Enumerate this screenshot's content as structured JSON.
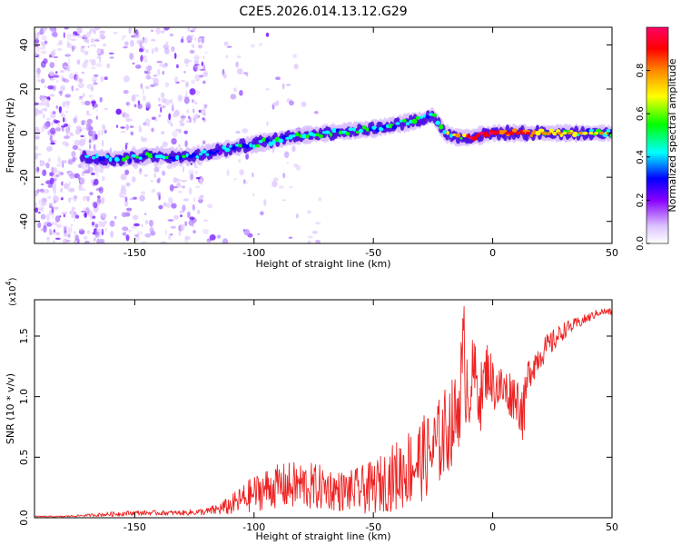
{
  "figure": {
    "title": "C2E5.2026.014.13.12.G29"
  },
  "chart_data": [
    {
      "type": "heatmap",
      "name": "spectrogram",
      "xlabel": "Height of straight line (km)",
      "ylabel": "Frequency (Hz)",
      "xlim": [
        -192,
        50
      ],
      "ylim": [
        -50,
        48
      ],
      "x_ticks": [
        -150,
        -100,
        -50,
        0,
        50
      ],
      "y_ticks": [
        -40,
        -20,
        0,
        20,
        40
      ],
      "colorbar": {
        "label": "Normalized spectral amplitude",
        "range": [
          0,
          1
        ],
        "ticks": [
          "0.0",
          "0.2",
          "0.4",
          "0.6",
          "0.8"
        ],
        "colors": [
          "#ffffff",
          "#cc99ff",
          "#8800ff",
          "#0000ff",
          "#00ffff",
          "#00ff00",
          "#ffff00",
          "#ff8800",
          "#ff0000",
          "#ff0066"
        ]
      },
      "ridge": {
        "x": [
          -170,
          -160,
          -150,
          -140,
          -130,
          -120,
          -110,
          -100,
          -90,
          -80,
          -70,
          -60,
          -50,
          -40,
          -30,
          -25,
          -20,
          -15,
          -10,
          -5,
          0,
          10,
          20,
          30,
          40,
          50
        ],
        "freq": [
          -11,
          -12,
          -11,
          -10,
          -11,
          -9,
          -7,
          -5,
          -3,
          -1,
          0,
          1,
          2,
          4,
          6,
          8,
          0,
          -2,
          -2,
          -1,
          0,
          0,
          0,
          0,
          0,
          0
        ],
        "amplitude": [
          0.35,
          0.4,
          0.45,
          0.45,
          0.4,
          0.35,
          0.4,
          0.45,
          0.45,
          0.5,
          0.5,
          0.45,
          0.45,
          0.45,
          0.45,
          0.4,
          0.5,
          0.6,
          0.85,
          0.9,
          0.95,
          0.85,
          0.7,
          0.6,
          0.5,
          0.5
        ]
      }
    },
    {
      "type": "line",
      "name": "snr",
      "xlabel": "Height of straight line (km)",
      "ylabel": "SNR (10 * v/v)",
      "y_multiplier": "(x10",
      "y_multiplier_exp": "4",
      "y_multiplier_close": ")",
      "xlim": [
        -192,
        50
      ],
      "ylim": [
        0,
        1.8
      ],
      "x_ticks": [
        -150,
        -100,
        -50,
        0,
        50
      ],
      "y_ticks": [
        "0.0",
        "0.5",
        "1.0",
        "1.5"
      ],
      "color": "#ee2222",
      "series": [
        {
          "name": "SNR",
          "x": [
            -192,
            -180,
            -170,
            -160,
            -150,
            -140,
            -130,
            -120,
            -115,
            -110,
            -105,
            -100,
            -95,
            -90,
            -85,
            -80,
            -75,
            -70,
            -65,
            -60,
            -55,
            -50,
            -45,
            -40,
            -35,
            -30,
            -25,
            -20,
            -15,
            -12,
            -10,
            -8,
            -5,
            -2,
            0,
            5,
            10,
            13,
            15,
            20,
            25,
            30,
            35,
            40,
            45,
            50
          ],
          "y": [
            0.01,
            0.01,
            0.02,
            0.03,
            0.04,
            0.04,
            0.04,
            0.05,
            0.07,
            0.1,
            0.15,
            0.2,
            0.24,
            0.26,
            0.26,
            0.27,
            0.25,
            0.25,
            0.22,
            0.22,
            0.23,
            0.25,
            0.3,
            0.35,
            0.42,
            0.48,
            0.55,
            0.7,
            0.85,
            1.3,
            1.05,
            1.2,
            1.0,
            1.25,
            1.1,
            1.05,
            1.0,
            0.85,
            1.2,
            1.35,
            1.45,
            1.55,
            1.6,
            1.65,
            1.7,
            1.7
          ],
          "noise": [
            0.005,
            0.005,
            0.01,
            0.02,
            0.02,
            0.02,
            0.02,
            0.03,
            0.05,
            0.08,
            0.12,
            0.15,
            0.17,
            0.18,
            0.2,
            0.2,
            0.2,
            0.18,
            0.17,
            0.17,
            0.2,
            0.22,
            0.25,
            0.3,
            0.33,
            0.35,
            0.35,
            0.38,
            0.35,
            0.5,
            0.35,
            0.3,
            0.28,
            0.25,
            0.22,
            0.2,
            0.2,
            0.25,
            0.15,
            0.12,
            0.1,
            0.07,
            0.05,
            0.04,
            0.03,
            0.03
          ]
        }
      ]
    }
  ]
}
